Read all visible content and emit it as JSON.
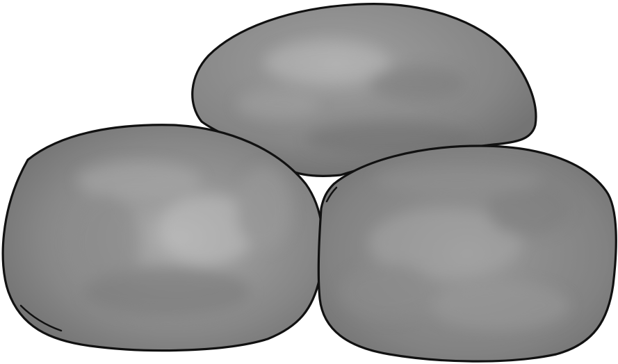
{
  "scene": {
    "subject": "three-gray-stones",
    "colors": {
      "background": "#ffffff",
      "stone_base": "#858585",
      "stone_highlight": "#b0b0b0",
      "stone_shadow": "#6a6a6a",
      "outline": "#111111"
    },
    "stones": [
      {
        "name": "top-back-stone"
      },
      {
        "name": "left-front-stone"
      },
      {
        "name": "right-front-stone"
      }
    ]
  }
}
